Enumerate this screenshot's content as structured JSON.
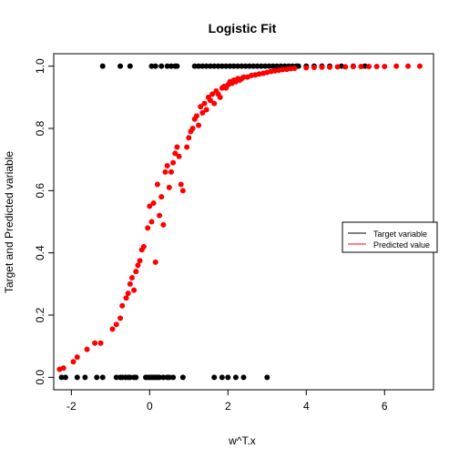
{
  "chart_data": {
    "type": "scatter",
    "title": "Logistic Fit",
    "xlabel": "w^T.x",
    "ylabel": "Target and Predicted variable",
    "xlim": [
      -2.45,
      7.25
    ],
    "ylim": [
      -0.04,
      1.04
    ],
    "x_ticks": [
      -2,
      0,
      2,
      4,
      6
    ],
    "y_ticks": [
      0.0,
      0.2,
      0.4,
      0.6,
      0.8,
      1.0
    ],
    "x_tick_labels": [
      "-2",
      "0",
      "2",
      "4",
      "6"
    ],
    "y_tick_labels": [
      "0.0",
      "0.2",
      "0.4",
      "0.6",
      "0.8",
      "1.0"
    ],
    "grid": false,
    "legend_position": "right",
    "series": [
      {
        "name": "Target variable",
        "color": "#000000",
        "marker": "filled-circle",
        "points": [
          [
            -2.25,
            0
          ],
          [
            -2.15,
            0
          ],
          [
            -1.85,
            0
          ],
          [
            -1.65,
            0
          ],
          [
            -1.35,
            0
          ],
          [
            -1.2,
            0
          ],
          [
            -0.85,
            0
          ],
          [
            -0.75,
            0
          ],
          [
            -0.7,
            0
          ],
          [
            -0.62,
            0
          ],
          [
            -0.55,
            0
          ],
          [
            -0.5,
            0
          ],
          [
            -0.4,
            0
          ],
          [
            -0.35,
            0
          ],
          [
            -0.1,
            0
          ],
          [
            -0.05,
            0
          ],
          [
            0.0,
            0
          ],
          [
            0.05,
            0
          ],
          [
            0.1,
            0
          ],
          [
            0.15,
            0
          ],
          [
            0.2,
            0
          ],
          [
            0.25,
            0
          ],
          [
            0.35,
            0
          ],
          [
            0.45,
            0
          ],
          [
            0.5,
            0
          ],
          [
            0.6,
            0
          ],
          [
            0.85,
            0
          ],
          [
            1.65,
            0
          ],
          [
            1.85,
            0
          ],
          [
            2.0,
            0
          ],
          [
            2.2,
            0
          ],
          [
            2.4,
            0
          ],
          [
            3.0,
            0
          ],
          [
            -1.2,
            1
          ],
          [
            -0.75,
            1
          ],
          [
            -0.5,
            1
          ],
          [
            0.05,
            1
          ],
          [
            0.15,
            1
          ],
          [
            0.3,
            1
          ],
          [
            0.45,
            1
          ],
          [
            0.55,
            1
          ],
          [
            0.65,
            1
          ],
          [
            0.7,
            1
          ],
          [
            1.15,
            1
          ],
          [
            1.25,
            1
          ],
          [
            1.35,
            1
          ],
          [
            1.45,
            1
          ],
          [
            1.55,
            1
          ],
          [
            1.65,
            1
          ],
          [
            1.75,
            1
          ],
          [
            1.85,
            1
          ],
          [
            1.95,
            1
          ],
          [
            2.05,
            1
          ],
          [
            2.15,
            1
          ],
          [
            2.25,
            1
          ],
          [
            2.35,
            1
          ],
          [
            2.45,
            1
          ],
          [
            2.55,
            1
          ],
          [
            2.65,
            1
          ],
          [
            2.75,
            1
          ],
          [
            2.85,
            1
          ],
          [
            2.95,
            1
          ],
          [
            3.05,
            1
          ],
          [
            3.15,
            1
          ],
          [
            3.25,
            1
          ],
          [
            3.35,
            1
          ],
          [
            3.45,
            1
          ],
          [
            3.55,
            1
          ],
          [
            3.65,
            1
          ],
          [
            3.75,
            1
          ],
          [
            3.8,
            1
          ],
          [
            4.0,
            1
          ],
          [
            4.2,
            1
          ],
          [
            4.4,
            1
          ],
          [
            4.6,
            1
          ],
          [
            4.9,
            1
          ],
          [
            5.2,
            1
          ],
          [
            5.5,
            1
          ]
        ]
      },
      {
        "name": "Predicted value",
        "color": "#ff0000",
        "marker": "filled-circle",
        "points": [
          [
            -2.3,
            0.026
          ],
          [
            -2.2,
            0.03
          ],
          [
            -1.95,
            0.05
          ],
          [
            -1.85,
            0.065
          ],
          [
            -1.6,
            0.09
          ],
          [
            -1.4,
            0.11
          ],
          [
            -1.25,
            0.11
          ],
          [
            -0.95,
            0.155
          ],
          [
            -0.85,
            0.17
          ],
          [
            -0.75,
            0.19
          ],
          [
            -0.7,
            0.23
          ],
          [
            -0.6,
            0.255
          ],
          [
            -0.55,
            0.27
          ],
          [
            -0.5,
            0.3
          ],
          [
            -0.45,
            0.32
          ],
          [
            -0.4,
            0.28
          ],
          [
            -0.35,
            0.34
          ],
          [
            -0.3,
            0.36
          ],
          [
            -0.25,
            0.375
          ],
          [
            -0.2,
            0.41
          ],
          [
            -0.15,
            0.42
          ],
          [
            -0.05,
            0.48
          ],
          [
            0.0,
            0.55
          ],
          [
            0.05,
            0.5
          ],
          [
            0.1,
            0.56
          ],
          [
            0.15,
            0.37
          ],
          [
            0.2,
            0.62
          ],
          [
            0.25,
            0.52
          ],
          [
            0.3,
            0.58
          ],
          [
            0.35,
            0.49
          ],
          [
            0.4,
            0.66
          ],
          [
            0.45,
            0.68
          ],
          [
            0.5,
            0.61
          ],
          [
            0.55,
            0.66
          ],
          [
            0.6,
            0.69
          ],
          [
            0.65,
            0.72
          ],
          [
            0.7,
            0.74
          ],
          [
            0.75,
            0.71
          ],
          [
            0.8,
            0.62
          ],
          [
            0.85,
            0.6
          ],
          [
            0.95,
            0.74
          ],
          [
            1.0,
            0.77
          ],
          [
            1.05,
            0.79
          ],
          [
            1.1,
            0.8
          ],
          [
            1.15,
            0.83
          ],
          [
            1.2,
            0.84
          ],
          [
            1.25,
            0.81
          ],
          [
            1.3,
            0.87
          ],
          [
            1.35,
            0.85
          ],
          [
            1.4,
            0.88
          ],
          [
            1.45,
            0.86
          ],
          [
            1.5,
            0.9
          ],
          [
            1.55,
            0.89
          ],
          [
            1.6,
            0.91
          ],
          [
            1.65,
            0.88
          ],
          [
            1.7,
            0.92
          ],
          [
            1.75,
            0.91
          ],
          [
            1.8,
            0.9
          ],
          [
            1.85,
            0.93
          ],
          [
            1.9,
            0.935
          ],
          [
            1.95,
            0.93
          ],
          [
            2.0,
            0.94
          ],
          [
            2.05,
            0.95
          ],
          [
            2.1,
            0.945
          ],
          [
            2.15,
            0.955
          ],
          [
            2.2,
            0.95
          ],
          [
            2.25,
            0.96
          ],
          [
            2.3,
            0.955
          ],
          [
            2.35,
            0.96
          ],
          [
            2.4,
            0.965
          ],
          [
            2.5,
            0.965
          ],
          [
            2.6,
            0.97
          ],
          [
            2.7,
            0.972
          ],
          [
            2.8,
            0.975
          ],
          [
            2.9,
            0.977
          ],
          [
            3.0,
            0.98
          ],
          [
            3.1,
            0.983
          ],
          [
            3.2,
            0.985
          ],
          [
            3.3,
            0.987
          ],
          [
            3.4,
            0.989
          ],
          [
            3.5,
            0.99
          ],
          [
            3.6,
            0.992
          ],
          [
            3.7,
            0.993
          ],
          [
            4.0,
            0.995
          ],
          [
            4.2,
            0.996
          ],
          [
            4.4,
            0.997
          ],
          [
            4.6,
            0.997
          ],
          [
            4.8,
            0.998
          ],
          [
            5.0,
            0.998
          ],
          [
            5.2,
            0.999
          ],
          [
            5.4,
            0.999
          ],
          [
            5.6,
            0.999
          ],
          [
            5.8,
            0.999
          ],
          [
            6.0,
            0.999
          ],
          [
            6.3,
            1.0
          ],
          [
            6.6,
            1.0
          ],
          [
            6.9,
            1.0
          ]
        ]
      }
    ]
  }
}
